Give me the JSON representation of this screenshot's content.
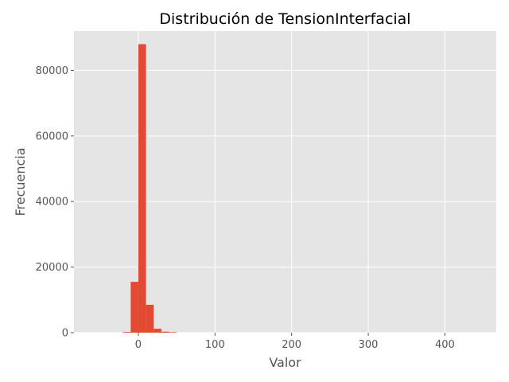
{
  "chart_data": {
    "type": "bar",
    "title": "Distribución de TensionInterfacial",
    "xlabel": "Valor",
    "ylabel": "Frecuencia",
    "xlim": [
      -84,
      467
    ],
    "ylim": [
      0,
      92000
    ],
    "xticks": [
      0,
      100,
      200,
      300,
      400
    ],
    "xtick_labels": [
      "0",
      "100",
      "200",
      "300",
      "400"
    ],
    "yticks": [
      0,
      20000,
      40000,
      60000,
      80000
    ],
    "ytick_labels": [
      "0",
      "20000",
      "40000",
      "60000",
      "80000"
    ],
    "grid": true,
    "bar_color": "#E24A33",
    "background_color": "#E5E5E5",
    "bins": [
      {
        "x0": -20,
        "x1": -10,
        "value": 200
      },
      {
        "x0": -10,
        "x1": 0,
        "value": 15500
      },
      {
        "x0": 0,
        "x1": 10,
        "value": 88000
      },
      {
        "x0": 10,
        "x1": 20,
        "value": 8500
      },
      {
        "x0": 20,
        "x1": 30,
        "value": 1200
      },
      {
        "x0": 30,
        "x1": 40,
        "value": 300
      },
      {
        "x0": 40,
        "x1": 50,
        "value": 150
      }
    ]
  }
}
